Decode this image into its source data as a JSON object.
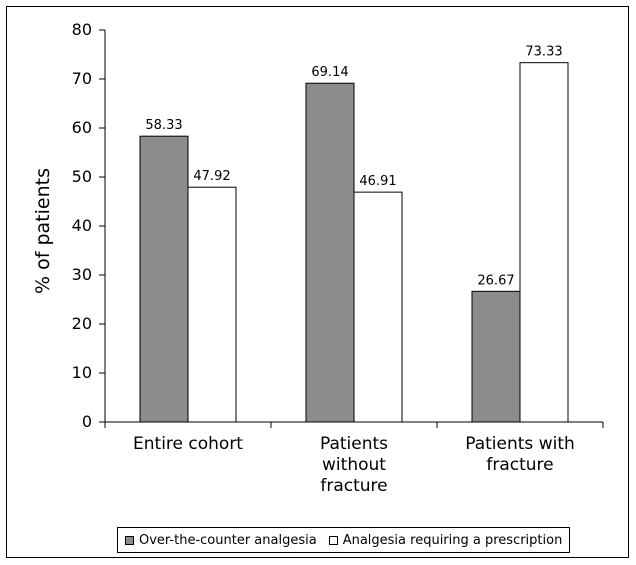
{
  "chart_data": {
    "type": "bar",
    "title": "",
    "xlabel": "",
    "ylabel": "% of patients",
    "ylim": [
      0,
      80
    ],
    "yticks": [
      0,
      10,
      20,
      30,
      40,
      50,
      60,
      70,
      80
    ],
    "ytick_labels": [
      "0",
      "10",
      "20",
      "30",
      "40",
      "50",
      "60",
      "70",
      "80"
    ],
    "grid": false,
    "legend_position": "bottom",
    "categories": [
      [
        "Entire cohort"
      ],
      [
        "Patients",
        "without",
        "fracture"
      ],
      [
        "Patients with",
        "fracture"
      ]
    ],
    "series": [
      {
        "name": "Over-the-counter analgesia",
        "color": "#8c8c8c",
        "values": [
          58.33,
          69.14,
          26.67
        ],
        "labels": [
          "58.33",
          "69.14",
          "26.67"
        ]
      },
      {
        "name": "Analgesia requiring a prescription",
        "color": "#ffffff",
        "values": [
          47.92,
          46.91,
          73.33
        ],
        "labels": [
          "47.92",
          "46.91",
          "73.33"
        ]
      }
    ]
  }
}
